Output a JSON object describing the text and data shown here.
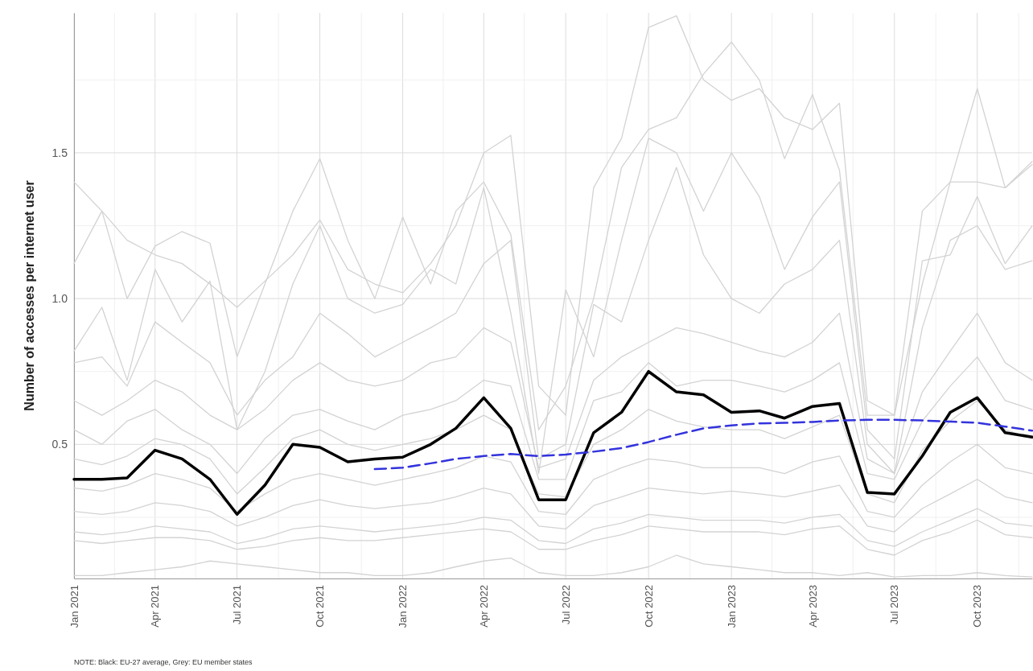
{
  "chart_data": {
    "type": "line",
    "ylabel": "Number of accesses per internet user",
    "annotations": [
      "NOTE: Black: EU-27 average, Grey: EU member states"
    ],
    "x": [
      "2021-01",
      "2021-02",
      "2021-03",
      "2021-04",
      "2021-05",
      "2021-06",
      "2021-07",
      "2021-08",
      "2021-09",
      "2021-10",
      "2021-11",
      "2021-12",
      "2022-01",
      "2022-02",
      "2022-03",
      "2022-04",
      "2022-05",
      "2022-06",
      "2022-07",
      "2022-08",
      "2022-09",
      "2022-10",
      "2022-11",
      "2022-12",
      "2023-01",
      "2023-02",
      "2023-03",
      "2023-04",
      "2023-05",
      "2023-06",
      "2023-07",
      "2023-08",
      "2023-09",
      "2023-10",
      "2023-11",
      "2023-12"
    ],
    "xlim": [
      "2021-01-01",
      "2023-12-01"
    ],
    "xticks": [
      {
        "value": "2021-01-01",
        "label": "Jan 2021"
      },
      {
        "value": "2021-02-15",
        "label": null
      },
      {
        "value": "2021-04-01",
        "label": "Apr 2021"
      },
      {
        "value": "2021-05-16",
        "label": null
      },
      {
        "value": "2021-07-01",
        "label": "Jul 2021"
      },
      {
        "value": "2021-08-16",
        "label": null
      },
      {
        "value": "2021-10-01",
        "label": "Oct 2021"
      },
      {
        "value": "2021-11-16",
        "label": null
      },
      {
        "value": "2022-01-01",
        "label": "Jan 2022"
      },
      {
        "value": "2022-02-15",
        "label": null
      },
      {
        "value": "2022-04-01",
        "label": "Apr 2022"
      },
      {
        "value": "2022-05-16",
        "label": null
      },
      {
        "value": "2022-07-01",
        "label": "Jul 2022"
      },
      {
        "value": "2022-08-16",
        "label": null
      },
      {
        "value": "2022-10-01",
        "label": "Oct 2022"
      },
      {
        "value": "2022-11-16",
        "label": null
      },
      {
        "value": "2023-01-01",
        "label": "Jan 2023"
      },
      {
        "value": "2023-02-15",
        "label": null
      },
      {
        "value": "2023-04-01",
        "label": "Apr 2023"
      },
      {
        "value": "2023-05-16",
        "label": null
      },
      {
        "value": "2023-07-01",
        "label": "Jul 2023"
      },
      {
        "value": "2023-08-16",
        "label": null
      },
      {
        "value": "2023-10-01",
        "label": "Oct 2023"
      },
      {
        "value": "2023-11-16",
        "label": null
      }
    ],
    "ylim": [
      0.04,
      1.98
    ],
    "yticks": [
      {
        "value": 0.25,
        "label": null
      },
      {
        "value": 0.5,
        "label": "0.5"
      },
      {
        "value": 0.75,
        "label": null
      },
      {
        "value": 1.0,
        "label": "1.0"
      },
      {
        "value": 1.25,
        "label": null
      },
      {
        "value": 1.5,
        "label": "1.5"
      },
      {
        "value": 1.75,
        "label": null
      }
    ],
    "grid": true,
    "marker": "none",
    "series": [
      {
        "color": "#d3d3d3",
        "values": [
          1.4,
          1.3,
          1.2,
          1.15,
          1.12,
          1.05,
          0.97,
          1.06,
          1.15,
          1.27,
          1.1,
          1.05,
          1.02,
          1.12,
          1.25,
          1.5,
          1.56,
          0.7,
          0.6,
          1.38,
          1.55,
          1.93,
          1.97,
          1.75,
          1.68,
          1.72,
          1.62,
          1.58,
          1.67,
          0.65,
          0.6,
          1.05,
          1.4,
          1.72,
          1.38,
          1.47
        ]
      },
      {
        "color": "#d3d3d3",
        "values": [
          1.12,
          1.3,
          1.0,
          1.18,
          1.23,
          1.19,
          0.8,
          1.05,
          1.3,
          1.48,
          1.2,
          1.0,
          1.28,
          1.05,
          1.3,
          1.4,
          1.22,
          0.55,
          0.7,
          1.0,
          1.45,
          1.58,
          1.62,
          1.77,
          1.88,
          1.75,
          1.48,
          1.7,
          1.44,
          0.6,
          0.6,
          1.3,
          1.4,
          1.4,
          1.38,
          1.46
        ]
      },
      {
        "color": "#d3d3d3",
        "values": [
          0.82,
          0.97,
          0.72,
          1.1,
          0.92,
          1.06,
          0.55,
          0.75,
          1.05,
          1.25,
          1.0,
          0.95,
          0.98,
          1.1,
          1.05,
          1.38,
          0.95,
          0.4,
          1.03,
          0.8,
          1.2,
          1.55,
          1.5,
          1.3,
          1.5,
          1.35,
          1.1,
          1.28,
          1.4,
          0.55,
          0.45,
          1.13,
          1.15,
          1.35,
          1.12,
          1.25
        ]
      },
      {
        "color": "#d3d3d3",
        "values": [
          0.78,
          0.8,
          0.7,
          0.92,
          0.85,
          0.78,
          0.6,
          0.72,
          0.8,
          0.95,
          0.88,
          0.8,
          0.85,
          0.9,
          0.95,
          1.12,
          1.2,
          0.45,
          0.5,
          0.98,
          0.92,
          1.2,
          1.45,
          1.15,
          1.0,
          0.95,
          1.05,
          1.1,
          1.2,
          0.5,
          0.4,
          0.9,
          1.2,
          1.25,
          1.1,
          1.13
        ]
      },
      {
        "color": "#d3d3d3",
        "values": [
          0.65,
          0.6,
          0.65,
          0.72,
          0.68,
          0.6,
          0.55,
          0.62,
          0.72,
          0.78,
          0.72,
          0.7,
          0.72,
          0.78,
          0.8,
          0.9,
          0.85,
          0.42,
          0.45,
          0.72,
          0.8,
          0.85,
          0.9,
          0.88,
          0.85,
          0.82,
          0.8,
          0.85,
          0.95,
          0.45,
          0.4,
          0.68,
          0.82,
          0.95,
          0.78,
          0.72
        ]
      },
      {
        "color": "#d3d3d3",
        "values": [
          0.55,
          0.5,
          0.58,
          0.62,
          0.55,
          0.5,
          0.4,
          0.52,
          0.6,
          0.62,
          0.58,
          0.55,
          0.6,
          0.62,
          0.65,
          0.72,
          0.7,
          0.38,
          0.38,
          0.65,
          0.68,
          0.78,
          0.7,
          0.72,
          0.72,
          0.7,
          0.68,
          0.72,
          0.78,
          0.4,
          0.38,
          0.58,
          0.7,
          0.8,
          0.65,
          0.62
        ]
      },
      {
        "color": "#d3d3d3",
        "values": [
          0.45,
          0.43,
          0.46,
          0.52,
          0.5,
          0.45,
          0.33,
          0.42,
          0.52,
          0.55,
          0.5,
          0.48,
          0.5,
          0.52,
          0.55,
          0.6,
          0.55,
          0.33,
          0.32,
          0.5,
          0.55,
          0.62,
          0.58,
          0.56,
          0.55,
          0.55,
          0.52,
          0.56,
          0.6,
          0.33,
          0.3,
          0.48,
          0.58,
          0.65,
          0.55,
          0.52
        ]
      },
      {
        "color": "#d3d3d3",
        "values": [
          0.35,
          0.34,
          0.36,
          0.4,
          0.38,
          0.35,
          0.27,
          0.33,
          0.38,
          0.4,
          0.38,
          0.36,
          0.38,
          0.4,
          0.42,
          0.46,
          0.44,
          0.27,
          0.26,
          0.38,
          0.42,
          0.45,
          0.44,
          0.42,
          0.42,
          0.42,
          0.4,
          0.44,
          0.46,
          0.27,
          0.25,
          0.36,
          0.44,
          0.5,
          0.42,
          0.4
        ]
      },
      {
        "color": "#d3d3d3",
        "values": [
          0.27,
          0.26,
          0.27,
          0.3,
          0.29,
          0.27,
          0.22,
          0.25,
          0.29,
          0.31,
          0.29,
          0.28,
          0.29,
          0.3,
          0.32,
          0.35,
          0.33,
          0.22,
          0.21,
          0.29,
          0.32,
          0.35,
          0.34,
          0.33,
          0.34,
          0.33,
          0.32,
          0.34,
          0.36,
          0.22,
          0.2,
          0.28,
          0.33,
          0.38,
          0.32,
          0.3
        ]
      },
      {
        "color": "#d3d3d3",
        "values": [
          0.2,
          0.19,
          0.2,
          0.22,
          0.21,
          0.2,
          0.16,
          0.18,
          0.21,
          0.22,
          0.21,
          0.2,
          0.21,
          0.22,
          0.23,
          0.25,
          0.24,
          0.17,
          0.16,
          0.21,
          0.23,
          0.26,
          0.25,
          0.24,
          0.24,
          0.24,
          0.23,
          0.25,
          0.26,
          0.17,
          0.15,
          0.2,
          0.24,
          0.28,
          0.23,
          0.22
        ]
      },
      {
        "color": "#d3d3d3",
        "values": [
          0.17,
          0.16,
          0.17,
          0.18,
          0.18,
          0.17,
          0.14,
          0.15,
          0.17,
          0.18,
          0.17,
          0.17,
          0.18,
          0.19,
          0.2,
          0.21,
          0.2,
          0.14,
          0.14,
          0.17,
          0.19,
          0.22,
          0.21,
          0.2,
          0.2,
          0.2,
          0.19,
          0.21,
          0.22,
          0.14,
          0.12,
          0.17,
          0.2,
          0.24,
          0.19,
          0.18
        ]
      },
      {
        "color": "#d3d3d3",
        "values": [
          0.05,
          0.05,
          0.06,
          0.07,
          0.08,
          0.1,
          0.09,
          0.08,
          0.07,
          0.06,
          0.06,
          0.05,
          0.05,
          0.06,
          0.08,
          0.1,
          0.11,
          0.06,
          0.05,
          0.05,
          0.06,
          0.08,
          0.12,
          0.09,
          0.08,
          0.07,
          0.06,
          0.06,
          0.05,
          0.06,
          0.045,
          0.05,
          0.05,
          0.06,
          0.05,
          0.045
        ]
      },
      {
        "color": "#000000",
        "values": [
          0.38,
          0.38,
          0.385,
          0.48,
          0.45,
          0.38,
          0.26,
          0.36,
          0.5,
          0.49,
          0.44,
          0.45,
          0.456,
          0.5,
          0.555,
          0.66,
          0.555,
          0.31,
          0.31,
          0.54,
          0.61,
          0.75,
          0.68,
          0.67,
          0.61,
          0.615,
          0.59,
          0.63,
          0.64,
          0.335,
          0.33,
          0.46,
          0.61,
          0.66,
          0.54,
          0.525
        ]
      },
      {
        "color": "#3333dd",
        "line_style": "dashed",
        "x": [
          "2021-12",
          "2022-01",
          "2022-02",
          "2022-03",
          "2022-04",
          "2022-05",
          "2022-06",
          "2022-07",
          "2022-08",
          "2022-09",
          "2022-10",
          "2022-11",
          "2022-12",
          "2023-01",
          "2023-02",
          "2023-03",
          "2023-04",
          "2023-05",
          "2023-06",
          "2023-07",
          "2023-08",
          "2023-09",
          "2023-10",
          "2023-11",
          "2023-12"
        ],
        "values": [
          0.415,
          0.42,
          0.435,
          0.45,
          0.46,
          0.467,
          0.46,
          0.465,
          0.475,
          0.487,
          0.508,
          0.533,
          0.555,
          0.565,
          0.572,
          0.574,
          0.577,
          0.582,
          0.584,
          0.584,
          0.582,
          0.578,
          0.574,
          0.561,
          0.547
        ]
      }
    ]
  }
}
